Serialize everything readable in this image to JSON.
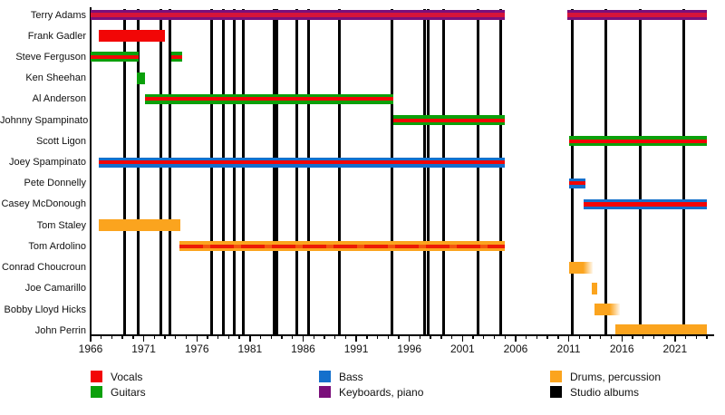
{
  "chart_data": {
    "type": "timeline",
    "description": "Band members timeline (Gantt-style) with studio album release markers",
    "x_axis": {
      "start": 1966,
      "end": 2024,
      "tick_interval": 5,
      "tick_labels": [
        "1966",
        "1971",
        "1976",
        "1981",
        "1986",
        "1991",
        "1996",
        "2001",
        "2006",
        "2011",
        "2016",
        "2021"
      ]
    },
    "colors": {
      "vocals": "#f20606",
      "vocals_on_keyboards": "#d6143a",
      "guitars": "#0ba00b",
      "bass": "#1470cc",
      "keyboards": "#7a0f7a",
      "drums": "#fba41e",
      "albums": "#000000"
    },
    "members": [
      {
        "name": "Terry Adams",
        "base": "keyboards",
        "stripe": "vocals",
        "segments": [
          {
            "from": 1966.0,
            "to": 2005.0
          },
          {
            "from": 2010.9,
            "to": 2024.0
          }
        ]
      },
      {
        "name": "Frank Gadler",
        "base": "vocals",
        "segments": [
          {
            "from": 1966.8,
            "to": 1973.0
          }
        ]
      },
      {
        "name": "Steve Ferguson",
        "base": "guitars",
        "stripe": "vocals",
        "segments": [
          {
            "from": 1966.0,
            "to": 1970.5
          },
          {
            "from": 1973.6,
            "to": 1974.6
          }
        ]
      },
      {
        "name": "Ken Sheehan",
        "base": "guitars",
        "segments": [
          {
            "from": 1970.35,
            "to": 1971.1
          }
        ]
      },
      {
        "name": "Al Anderson",
        "base": "guitars",
        "stripe": "vocals",
        "segments": [
          {
            "from": 1971.1,
            "to": 1994.5
          }
        ]
      },
      {
        "name": "Johnny Spampinato",
        "base": "guitars",
        "stripe": "vocals",
        "segments": [
          {
            "from": 1994.5,
            "to": 2005.0
          }
        ]
      },
      {
        "name": "Scott Ligon",
        "base": "guitars",
        "stripe": "vocals",
        "segments": [
          {
            "from": 2011.0,
            "to": 2024.0
          }
        ]
      },
      {
        "name": "Joey Spampinato",
        "base": "bass",
        "stripe": "vocals",
        "segments": [
          {
            "from": 1966.8,
            "to": 2005.0
          }
        ]
      },
      {
        "name": "Pete Donnelly",
        "base": "bass",
        "stripe": "vocals",
        "segments": [
          {
            "from": 2011.0,
            "to": 2012.6
          }
        ]
      },
      {
        "name": "Casey McDonough",
        "base": "bass",
        "stripe": "vocals",
        "segments": [
          {
            "from": 2012.4,
            "to": 2024.0
          }
        ]
      },
      {
        "name": "Tom Staley",
        "base": "drums",
        "segments": [
          {
            "from": 1966.8,
            "to": 1974.45
          }
        ]
      },
      {
        "name": "Tom Ardolino",
        "base": "drums",
        "stripe": "vocals-partial",
        "segments": [
          {
            "from": 1974.4,
            "to": 2005.0
          }
        ]
      },
      {
        "name": "Conrad Choucroun",
        "base": "drums",
        "segments": [
          {
            "from": 2011.0,
            "to": 2013.25,
            "fade": "right"
          }
        ]
      },
      {
        "name": "Joe Camarillo",
        "base": "drums",
        "segments": [
          {
            "from": 2013.2,
            "to": 2013.65
          }
        ]
      },
      {
        "name": "Bobby Lloyd Hicks",
        "base": "drums",
        "segments": [
          {
            "from": 2013.4,
            "to": 2015.8,
            "fade": "right"
          }
        ]
      },
      {
        "name": "John Perrin",
        "base": "drums",
        "segments": [
          {
            "from": 2015.35,
            "to": 2024.0
          }
        ]
      }
    ],
    "albums": [
      1969.2,
      1970.5,
      1972.6,
      1973.5,
      1977.4,
      1978.5,
      1979.5,
      1980.4,
      1983.25,
      1983.55,
      1985.4,
      1986.5,
      1989.4,
      1994.4,
      1997.4,
      1997.8,
      1999.2,
      2002.5,
      2004.6,
      2011.3,
      2014.5,
      2017.7,
      2021.8
    ],
    "legend_columns": [
      {
        "items": [
          {
            "label": "Vocals",
            "role": "vocals"
          },
          {
            "label": "Guitars",
            "role": "guitars"
          }
        ]
      },
      {
        "items": [
          {
            "label": "Bass",
            "role": "bass"
          },
          {
            "label": "Keyboards, piano",
            "role": "keyboards"
          }
        ]
      },
      {
        "items": [
          {
            "label": "Drums, percussion",
            "role": "drums"
          },
          {
            "label": "Studio albums",
            "role": "albums"
          }
        ]
      }
    ]
  }
}
